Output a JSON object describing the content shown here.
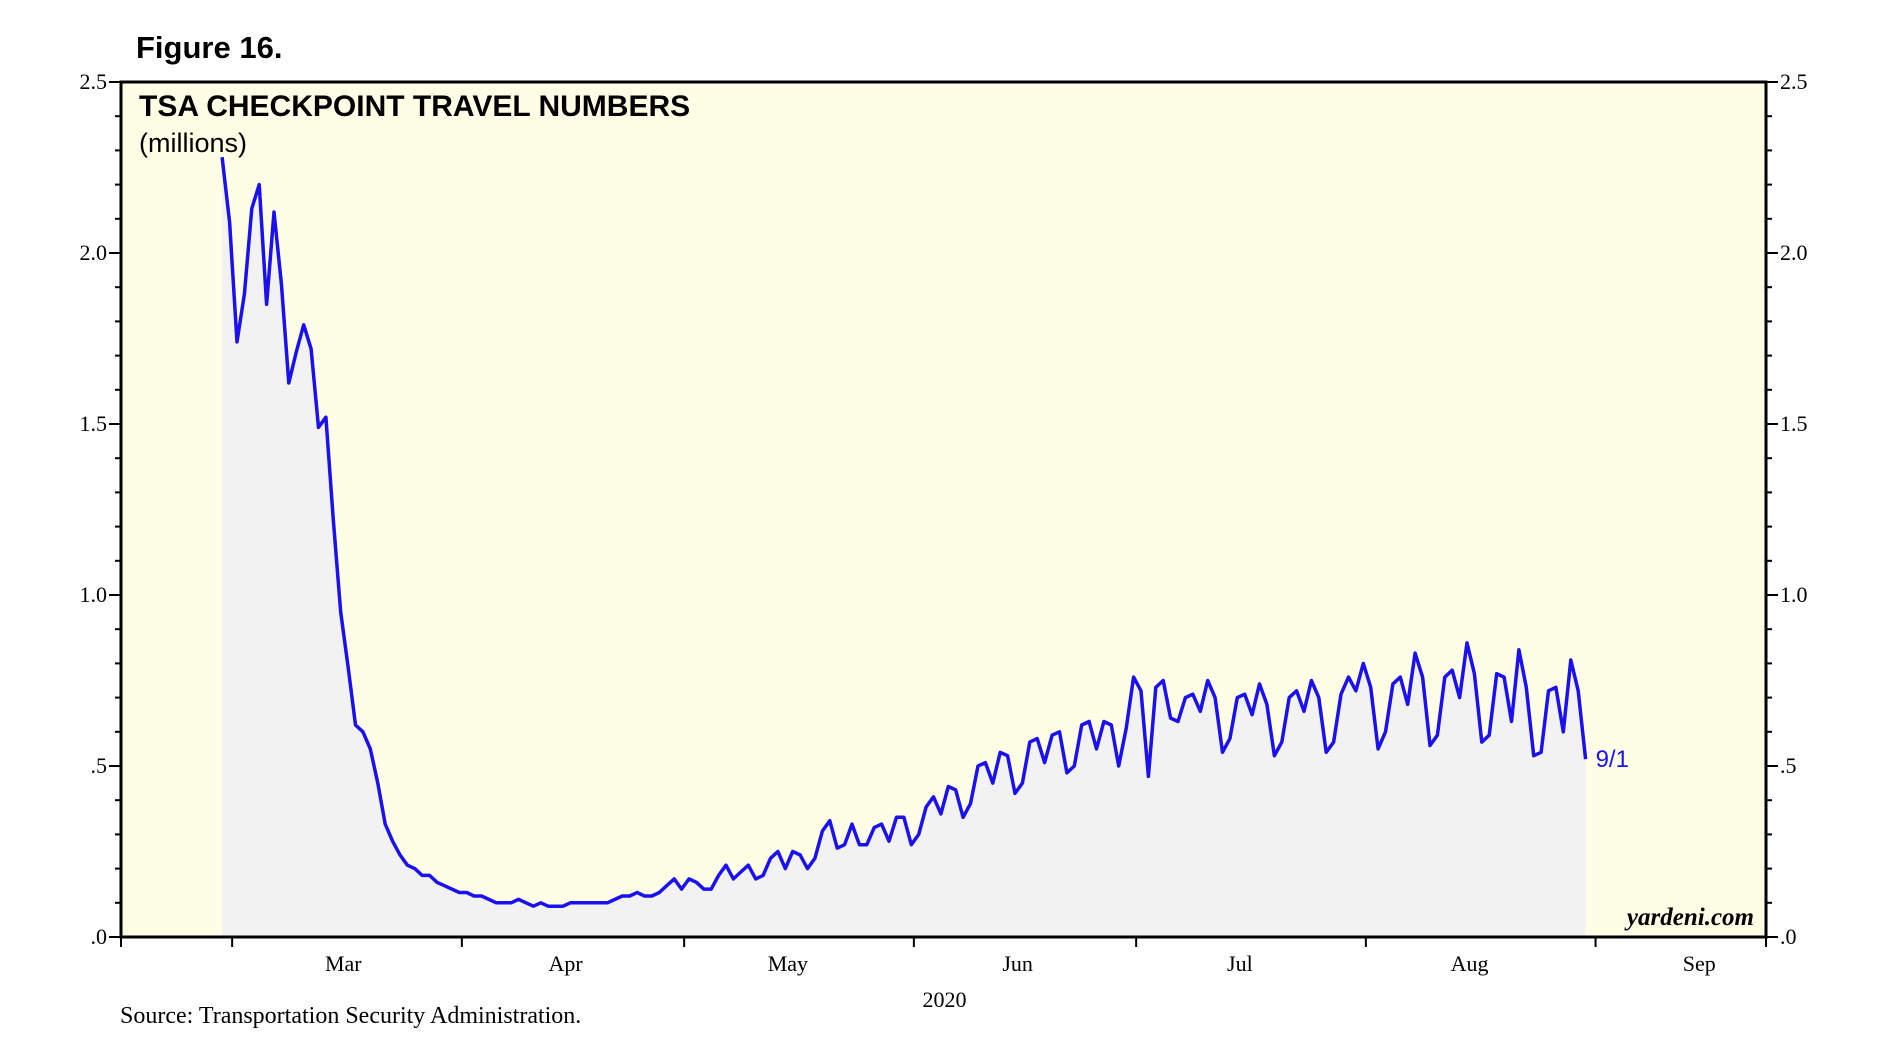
{
  "figure_label": "Figure 16.",
  "source": "Source: Transportation Security Administration.",
  "watermark": "yardeni.com",
  "colors": {
    "plot_bg": "#fefee6",
    "area_fill": "#f2f2f2",
    "line": "#1a10f0"
  },
  "chart_data": {
    "type": "area",
    "title": "TSA CHECKPOINT TRAVEL NUMBERS",
    "subtitle": "(millions)",
    "xlabel": "2020",
    "ylabel": "",
    "ylim": [
      0,
      2.5
    ],
    "yticks": [
      {
        "value": 0,
        "label": ".0"
      },
      {
        "value": 0.5,
        "label": ".5"
      },
      {
        "value": 1.0,
        "label": "1.0"
      },
      {
        "value": 1.5,
        "label": "1.5"
      },
      {
        "value": 2.0,
        "label": "2.0"
      },
      {
        "value": 2.5,
        "label": "2.5"
      }
    ],
    "xlim": [
      "2020-02-15",
      "2020-09-24"
    ],
    "month_labels": [
      {
        "label": "Mar",
        "date": "2020-03-16"
      },
      {
        "label": "Apr",
        "date": "2020-04-15"
      },
      {
        "label": "May",
        "date": "2020-05-15"
      },
      {
        "label": "Jun",
        "date": "2020-06-15"
      },
      {
        "label": "Jul",
        "date": "2020-07-15"
      },
      {
        "label": "Aug",
        "date": "2020-08-15"
      },
      {
        "label": "Sep",
        "date": "2020-09-15"
      }
    ],
    "month_ticks": [
      "2020-03-01",
      "2020-04-01",
      "2020-05-01",
      "2020-06-01",
      "2020-07-01",
      "2020-08-01",
      "2020-09-01"
    ],
    "end_label": "9/1",
    "grid": false,
    "legend": "none",
    "series": [
      {
        "start_date": "2020-03-01",
        "step_days": 1,
        "values": [
          2.28,
          2.09,
          1.74,
          1.88,
          2.13,
          2.2,
          1.85,
          2.12,
          1.91,
          1.62,
          1.71,
          1.79,
          1.72,
          1.49,
          1.52,
          1.22,
          0.95,
          0.79,
          0.62,
          0.6,
          0.55,
          0.45,
          0.33,
          0.28,
          0.24,
          0.21,
          0.2,
          0.18,
          0.18,
          0.16,
          0.15,
          0.14,
          0.13,
          0.13,
          0.12,
          0.12,
          0.11,
          0.1,
          0.1,
          0.1,
          0.11,
          0.1,
          0.09,
          0.1,
          0.09,
          0.09,
          0.09,
          0.1,
          0.1,
          0.1,
          0.1,
          0.1,
          0.1,
          0.11,
          0.12,
          0.12,
          0.13,
          0.12,
          0.12,
          0.13,
          0.15,
          0.17,
          0.14,
          0.17,
          0.16,
          0.14,
          0.14,
          0.18,
          0.21,
          0.17,
          0.19,
          0.21,
          0.17,
          0.18,
          0.23,
          0.25,
          0.2,
          0.25,
          0.24,
          0.2,
          0.23,
          0.31,
          0.34,
          0.26,
          0.27,
          0.33,
          0.27,
          0.27,
          0.32,
          0.33,
          0.28,
          0.35,
          0.35,
          0.27,
          0.3,
          0.38,
          0.41,
          0.36,
          0.44,
          0.43,
          0.35,
          0.39,
          0.5,
          0.51,
          0.45,
          0.54,
          0.53,
          0.42,
          0.45,
          0.57,
          0.58,
          0.51,
          0.59,
          0.6,
          0.48,
          0.5,
          0.62,
          0.63,
          0.55,
          0.63,
          0.62,
          0.5,
          0.61,
          0.76,
          0.72,
          0.47,
          0.73,
          0.75,
          0.64,
          0.63,
          0.7,
          0.71,
          0.66,
          0.75,
          0.7,
          0.54,
          0.58,
          0.7,
          0.71,
          0.65,
          0.74,
          0.68,
          0.53,
          0.57,
          0.7,
          0.72,
          0.66,
          0.75,
          0.7,
          0.54,
          0.57,
          0.71,
          0.76,
          0.72,
          0.8,
          0.73,
          0.55,
          0.6,
          0.74,
          0.76,
          0.68,
          0.83,
          0.76,
          0.56,
          0.59,
          0.76,
          0.78,
          0.7,
          0.86,
          0.77,
          0.57,
          0.59,
          0.77,
          0.76,
          0.63,
          0.84,
          0.73,
          0.53,
          0.54,
          0.72,
          0.73,
          0.6,
          0.81,
          0.72,
          0.52
        ]
      }
    ]
  }
}
